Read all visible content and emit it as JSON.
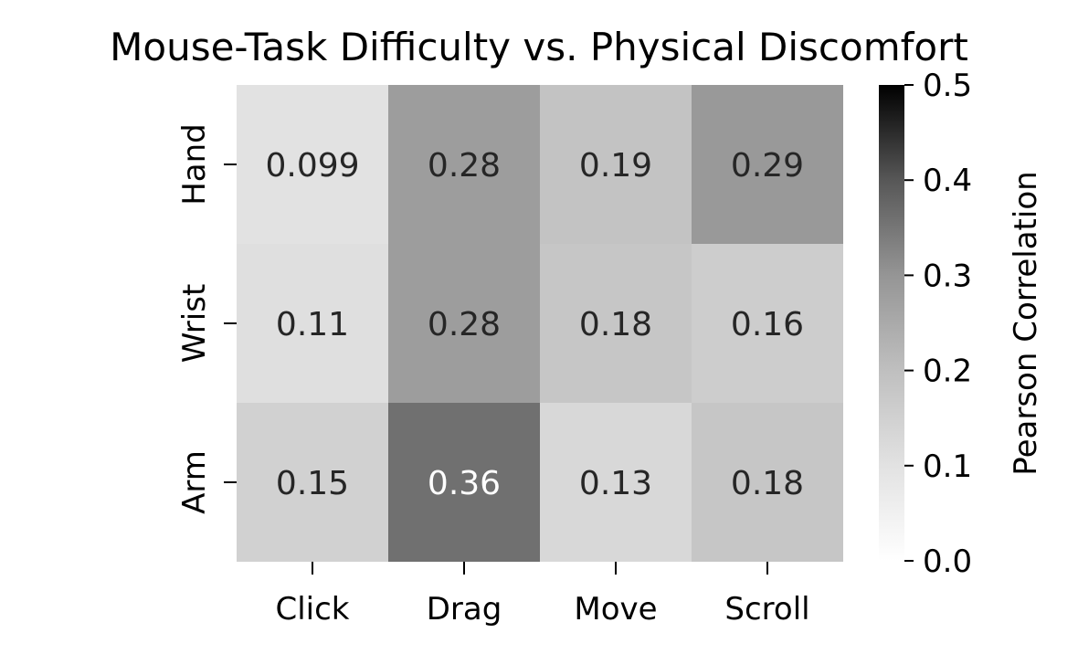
{
  "chart_data": {
    "type": "heatmap",
    "title": "Mouse-Task Difficulty vs. Physical Discomfort",
    "xlabel": "",
    "ylabel": "",
    "x_categories": [
      "Click",
      "Drag",
      "Move",
      "Scroll"
    ],
    "y_categories": [
      "Hand",
      "Wrist",
      "Arm"
    ],
    "values": [
      [
        0.099,
        0.28,
        0.19,
        0.29
      ],
      [
        0.11,
        0.28,
        0.18,
        0.16
      ],
      [
        0.15,
        0.36,
        0.13,
        0.18
      ]
    ],
    "cell_labels": [
      [
        "0.099",
        "0.28",
        "0.19",
        "0.29"
      ],
      [
        "0.11",
        "0.28",
        "0.18",
        "0.16"
      ],
      [
        "0.15",
        "0.36",
        "0.13",
        "0.18"
      ]
    ],
    "colorbar": {
      "label": "Pearson Correlation",
      "range": [
        0.0,
        0.5
      ],
      "ticks": [
        "0.0",
        "0.1",
        "0.2",
        "0.3",
        "0.4",
        "0.5"
      ],
      "colormap": "Greys"
    },
    "colors": {
      "low": "#ffffff",
      "high": "#000000",
      "text_dark": "#262626",
      "text_light": "#ffffff"
    }
  }
}
